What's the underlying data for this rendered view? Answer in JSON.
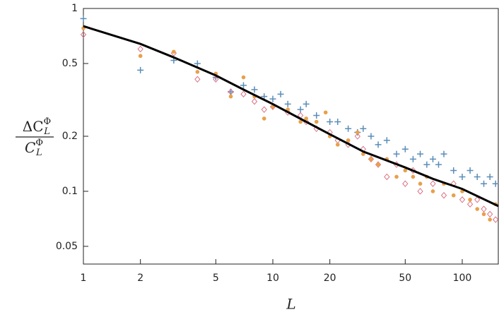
{
  "chart_data": {
    "type": "scatter",
    "xlabel": "L",
    "ylabel": {
      "numerator": {
        "base": "ΔC",
        "sup": "Φ",
        "sub": "L"
      },
      "denominator": {
        "base": "C",
        "sup": "Φ",
        "sub": "L"
      }
    },
    "log_x": true,
    "log_y": true,
    "xlim": [
      1,
      155
    ],
    "ylim": [
      0.04,
      1
    ],
    "xticks": [
      1,
      2,
      5,
      10,
      20,
      50,
      100
    ],
    "yticks": [
      0.05,
      0.1,
      0.2,
      0.5,
      1
    ],
    "series": [
      {
        "marker": "plus",
        "color": "#5b8db8",
        "x": [
          1,
          2,
          3,
          4,
          5,
          6,
          7,
          8,
          9,
          10,
          11,
          12,
          14,
          15,
          17,
          20,
          22,
          25,
          28,
          30,
          33,
          36,
          40,
          45,
          50,
          55,
          60,
          65,
          70,
          75,
          80,
          90,
          100,
          110,
          120,
          130,
          140,
          150
        ],
        "values": [
          0.88,
          0.46,
          0.52,
          0.5,
          0.42,
          0.35,
          0.38,
          0.36,
          0.33,
          0.32,
          0.34,
          0.3,
          0.28,
          0.3,
          0.26,
          0.24,
          0.24,
          0.22,
          0.21,
          0.22,
          0.2,
          0.18,
          0.19,
          0.16,
          0.17,
          0.15,
          0.16,
          0.14,
          0.15,
          0.14,
          0.16,
          0.13,
          0.12,
          0.13,
          0.12,
          0.11,
          0.12,
          0.11
        ]
      },
      {
        "marker": "dot",
        "color": "#e8a04a",
        "x": [
          1,
          2,
          3,
          4,
          5,
          6,
          7,
          8,
          9,
          10,
          12,
          14,
          15,
          17,
          19,
          20,
          22,
          25,
          28,
          30,
          33,
          36,
          40,
          45,
          50,
          55,
          60,
          65,
          70,
          80,
          90,
          100,
          110,
          120,
          130,
          140,
          150
        ],
        "values": [
          0.78,
          0.55,
          0.58,
          0.45,
          0.44,
          0.33,
          0.42,
          0.33,
          0.25,
          0.29,
          0.28,
          0.24,
          0.25,
          0.24,
          0.27,
          0.2,
          0.18,
          0.19,
          0.21,
          0.16,
          0.15,
          0.14,
          0.15,
          0.12,
          0.13,
          0.12,
          0.11,
          0.12,
          0.1,
          0.11,
          0.095,
          0.1,
          0.09,
          0.08,
          0.075,
          0.07,
          0.085
        ]
      },
      {
        "marker": "diamond",
        "color": "#d9667a",
        "x": [
          1,
          2,
          3,
          4,
          5,
          6,
          7,
          8,
          9,
          10,
          12,
          14,
          15,
          17,
          20,
          22,
          25,
          28,
          30,
          33,
          36,
          40,
          45,
          50,
          55,
          60,
          70,
          80,
          90,
          100,
          110,
          120,
          130,
          140,
          150
        ],
        "values": [
          0.72,
          0.6,
          0.57,
          0.41,
          0.41,
          0.35,
          0.34,
          0.31,
          0.28,
          0.29,
          0.27,
          0.26,
          0.24,
          0.22,
          0.21,
          0.19,
          0.18,
          0.2,
          0.17,
          0.15,
          0.14,
          0.12,
          0.14,
          0.11,
          0.13,
          0.1,
          0.11,
          0.095,
          0.11,
          0.09,
          0.085,
          0.09,
          0.08,
          0.075,
          0.07
        ]
      },
      {
        "marker": "line",
        "color": "#000000",
        "x": [
          1,
          2,
          3,
          5,
          7,
          10,
          15,
          20,
          30,
          50,
          70,
          100,
          155
        ],
        "values": [
          0.8,
          0.64,
          0.54,
          0.43,
          0.36,
          0.3,
          0.24,
          0.205,
          0.165,
          0.135,
          0.117,
          0.103,
          0.083
        ]
      }
    ]
  }
}
